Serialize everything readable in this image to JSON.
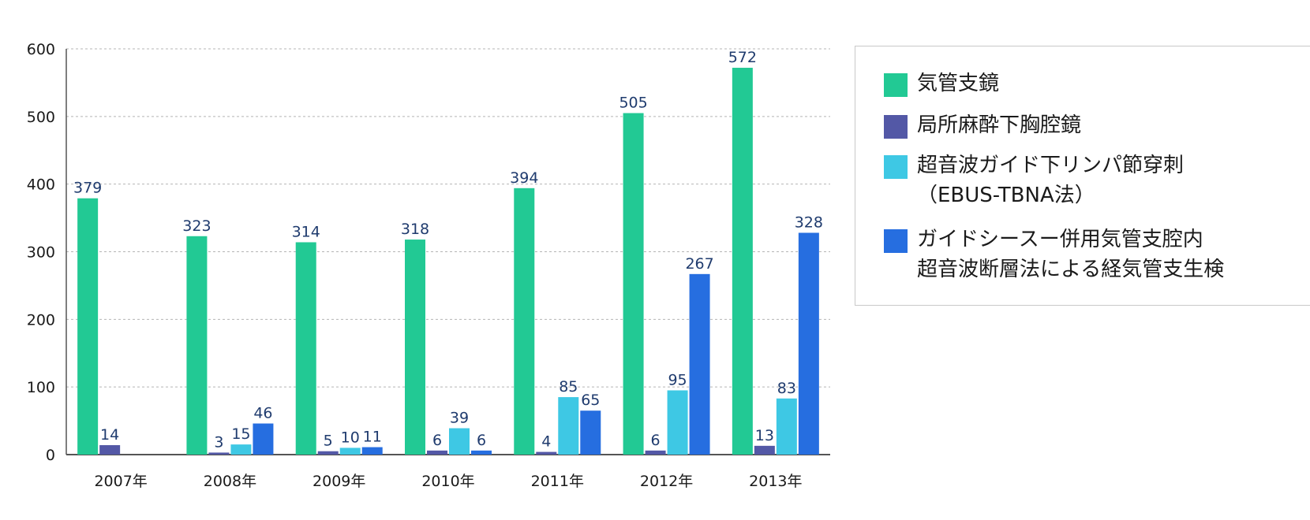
{
  "chart_data": {
    "type": "bar",
    "categories": [
      "2007年",
      "2008年",
      "2009年",
      "2010年",
      "2011年",
      "2012年",
      "2013年"
    ],
    "series": [
      {
        "name": "気管支鏡",
        "color": "#22c994",
        "values": [
          379,
          323,
          314,
          318,
          394,
          505,
          572
        ]
      },
      {
        "name": "局所麻酔下胸腔鏡",
        "color": "#5358a6",
        "values": [
          14,
          3,
          5,
          6,
          4,
          6,
          13
        ]
      },
      {
        "name": "超音波ガイド下リンパ節穿刺\n（EBUS-TBNA法）",
        "color": "#3ec8e4",
        "values": [
          null,
          15,
          10,
          39,
          85,
          95,
          83
        ]
      },
      {
        "name": "ガイドシースー併用気管支腔内\n超音波断層法による経気管支生検",
        "color": "#266ee0",
        "values": [
          null,
          46,
          11,
          6,
          65,
          267,
          328
        ]
      }
    ],
    "yticks": [
      "0",
      "100",
      "200",
      "300",
      "400",
      "500",
      "600"
    ],
    "ylim": [
      0,
      600
    ],
    "grid": true,
    "legend_position": "right"
  }
}
